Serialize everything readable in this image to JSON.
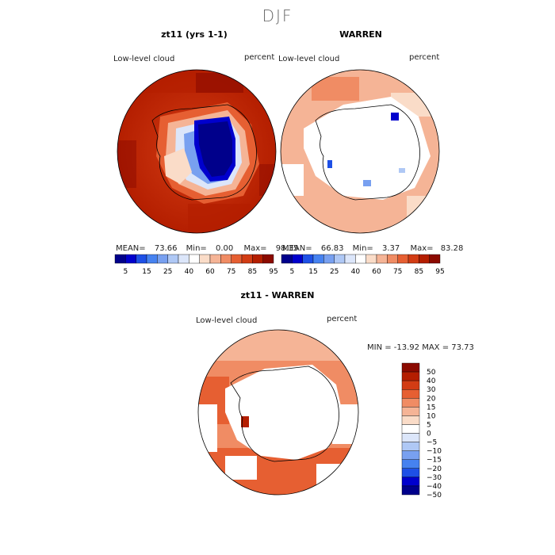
{
  "season": "DJF",
  "panels": {
    "left": {
      "title": "zt11 (yrs 1-1)",
      "variable": "Low-level cloud",
      "units": "percent",
      "stats": {
        "mean_label": "MEAN=",
        "mean": "73.66",
        "min_label": "Min=",
        "min": "0.00",
        "max_label": "Max=",
        "max": "98.35"
      }
    },
    "right": {
      "title": "WARREN",
      "variable": "Low-level cloud",
      "units": "percent",
      "stats": {
        "mean_label": "MEAN=",
        "mean": "66.83",
        "min_label": "Min=",
        "min": "3.37",
        "max_label": "Max=",
        "max": "83.28"
      }
    },
    "diff": {
      "title": "zt11 - WARREN",
      "variable": "Low-level cloud",
      "units": "percent",
      "minmax": "MIN = -13.92 MAX =  73.73"
    }
  },
  "colors": {
    "abs_scale": [
      "#00008b",
      "#0000cd",
      "#1e50e6",
      "#4682f0",
      "#78a0f0",
      "#afc8f5",
      "#dce6fa",
      "#ffffff",
      "#fadcc8",
      "#f5b496",
      "#f08c64",
      "#e65f32",
      "#d23c14",
      "#b41e00",
      "#8b0a00"
    ],
    "diff_scale": [
      "#00008b",
      "#0000cd",
      "#1e50e6",
      "#4682f0",
      "#78a0f0",
      "#afc8f5",
      "#dce6fa",
      "#ffffff",
      "#fadcc8",
      "#f5b496",
      "#f08c64",
      "#e65f32",
      "#d23c14",
      "#b41e00",
      "#8b0a00"
    ]
  },
  "chart_data": [
    {
      "type": "heatmap",
      "title": "zt11 (yrs 1-1)",
      "subtitle": "Low-level cloud",
      "units": "percent",
      "projection": "south polar stereographic",
      "colorbar_ticks": [
        "5",
        "15",
        "25",
        "40",
        "60",
        "75",
        "85",
        "95"
      ],
      "stats": {
        "mean": 73.66,
        "min": 0.0,
        "max": 98.35
      }
    },
    {
      "type": "heatmap",
      "title": "WARREN",
      "subtitle": "Low-level cloud",
      "units": "percent",
      "projection": "south polar stereographic",
      "colorbar_ticks": [
        "5",
        "15",
        "25",
        "40",
        "60",
        "75",
        "85",
        "95"
      ],
      "stats": {
        "mean": 66.83,
        "min": 3.37,
        "max": 83.28
      }
    },
    {
      "type": "heatmap",
      "title": "zt11 - WARREN",
      "subtitle": "Low-level cloud",
      "units": "percent",
      "projection": "south polar stereographic",
      "colorbar_ticks": [
        "50",
        "40",
        "30",
        "20",
        "15",
        "10",
        "5",
        "0",
        "−5",
        "−10",
        "−15",
        "−20",
        "−30",
        "−40",
        "−50"
      ],
      "stats": {
        "min": -13.92,
        "max": 73.73
      }
    }
  ]
}
